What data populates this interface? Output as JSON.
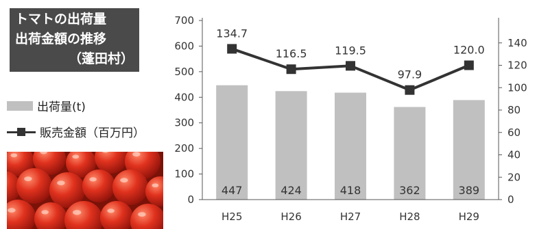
{
  "title": {
    "line1": "トマトの出荷量",
    "line2": "出荷金額の推移",
    "line3": "（蓬田村）"
  },
  "legend": {
    "bar_label": "出荷量(t)",
    "line_label": "販売金額（百万円）"
  },
  "photo_icon": "tomatoes-photo",
  "chart_data": {
    "type": "bar+line",
    "categories": [
      "H25",
      "H26",
      "H27",
      "H28",
      "H29"
    ],
    "series": [
      {
        "name": "出荷量(t)",
        "type": "bar",
        "axis": "left",
        "values": [
          447,
          424,
          418,
          362,
          389
        ],
        "color": "#c0c0c0"
      },
      {
        "name": "販売金額（百万円）",
        "type": "line",
        "axis": "right",
        "values": [
          134.7,
          116.5,
          119.5,
          97.9,
          120.0
        ],
        "color": "#333333"
      }
    ],
    "data_labels": {
      "bars": [
        "447",
        "424",
        "418",
        "362",
        "389"
      ],
      "line": [
        "134.7",
        "116.5",
        "119.5",
        "97.9",
        "120.0"
      ]
    },
    "y_left": {
      "min": 0,
      "max": 700,
      "ticks": [
        "0",
        "100",
        "200",
        "300",
        "400",
        "500",
        "600",
        "700"
      ]
    },
    "y_right": {
      "min": 0,
      "max": 160,
      "ticks": [
        "0",
        "20",
        "40",
        "60",
        "80",
        "100",
        "120",
        "140"
      ]
    },
    "grid": false
  }
}
